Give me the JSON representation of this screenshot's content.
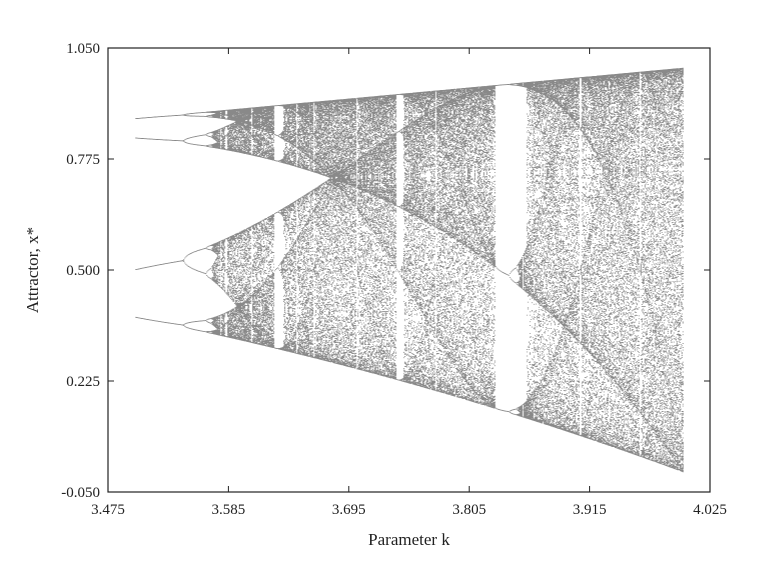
{
  "chart_data": {
    "type": "scatter",
    "title": "",
    "xlabel": "Parameter k",
    "ylabel": "Attractor, x*",
    "xlim": [
      3.475,
      4.025
    ],
    "ylim": [
      -0.05,
      1.05
    ],
    "x_ticks": [
      "3.475",
      "3.585",
      "3.695",
      "3.805",
      "3.915",
      "4.025"
    ],
    "y_ticks": [
      "-0.050",
      "0.225",
      "0.500",
      "0.775",
      "1.050"
    ],
    "x_range": [
      3.5,
      4.0
    ],
    "grid": false,
    "legend": "none",
    "point_color": "#111111",
    "series": [
      {
        "description_of_marks": "logistic map x_{n+1} = k x_n (1 - x_n) asymptotic iterates",
        "k_start": 3.5,
        "k_end": 4.0
      }
    ]
  }
}
